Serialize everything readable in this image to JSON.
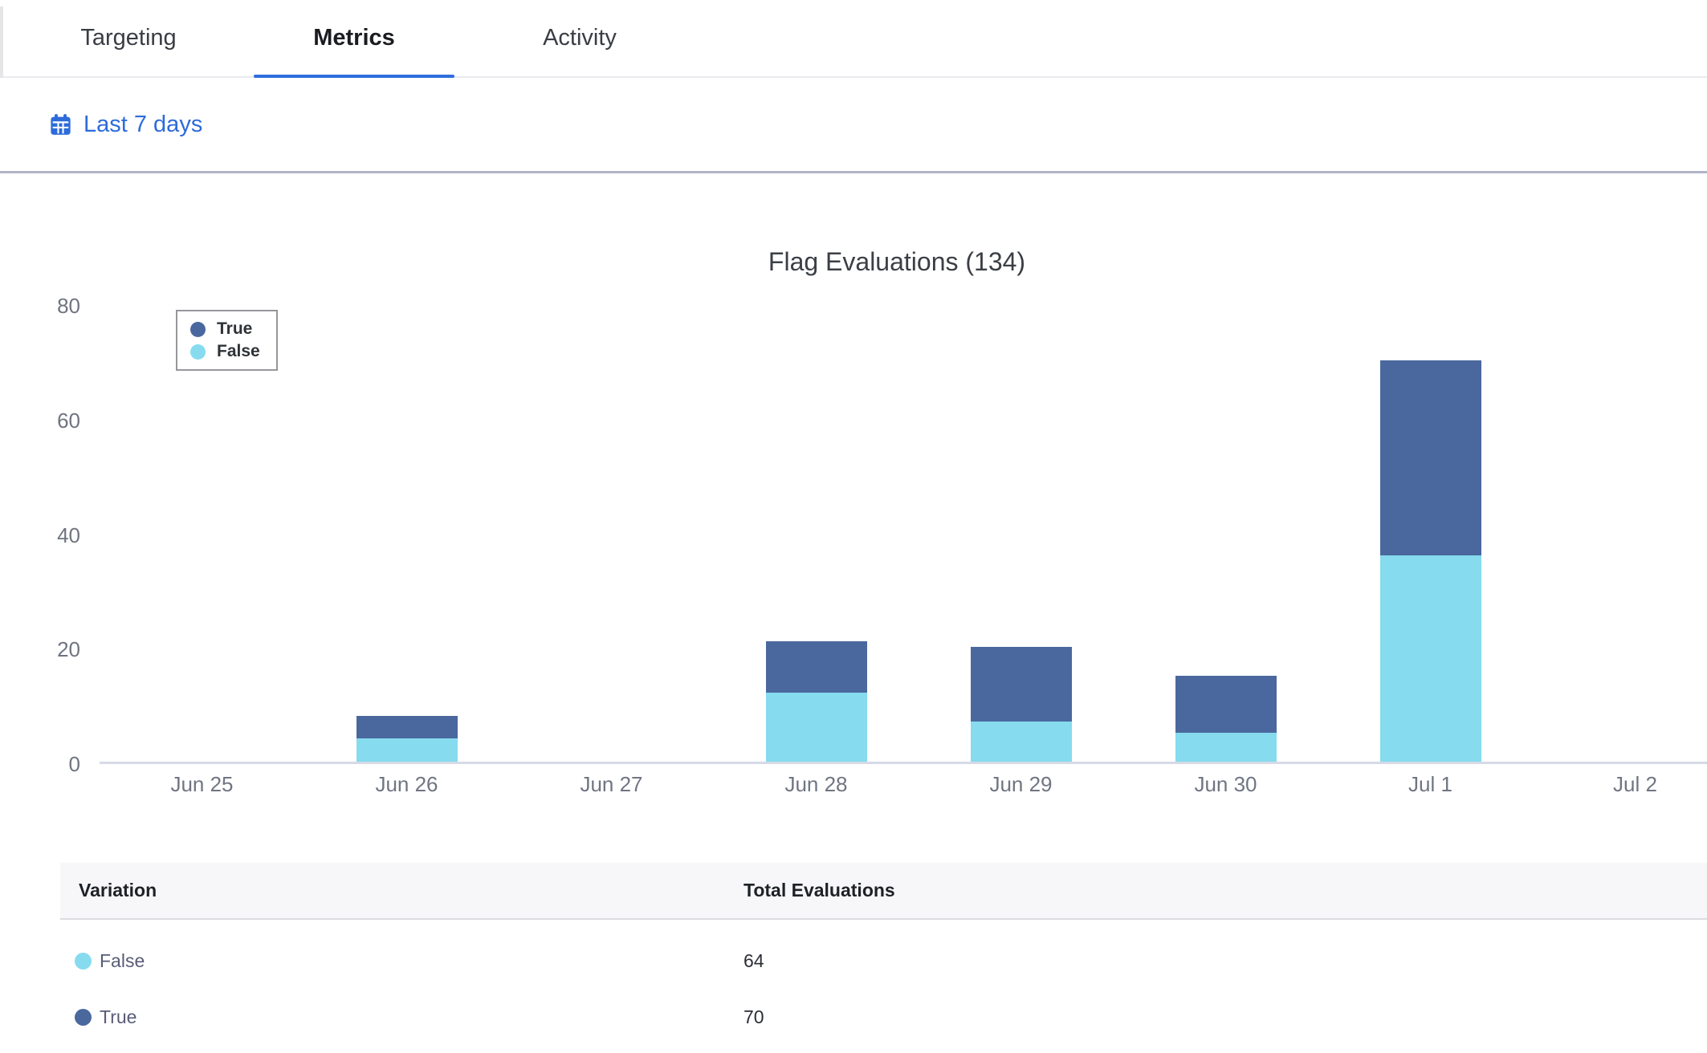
{
  "tabs": [
    {
      "label": "Targeting",
      "active": false
    },
    {
      "label": "Metrics",
      "active": true
    },
    {
      "label": "Activity",
      "active": false
    }
  ],
  "toolbar": {
    "calendar_icon": "calendar-icon",
    "date_range_label": "Last 7 days"
  },
  "chart_data": {
    "type": "bar",
    "stacked": true,
    "title": "Flag Evaluations (134)",
    "total_evaluations": 134,
    "categories": [
      "Jun 25",
      "Jun 26",
      "Jun 27",
      "Jun 28",
      "Jun 29",
      "Jun 30",
      "Jul 1",
      "Jul 2"
    ],
    "series": [
      {
        "name": "True",
        "color": "#4A689E",
        "values": [
          0,
          4,
          0,
          9,
          13,
          10,
          34,
          0
        ]
      },
      {
        "name": "False",
        "color": "#86DBEF",
        "values": [
          0,
          4,
          0,
          12,
          7,
          5,
          36,
          0
        ]
      }
    ],
    "ylim": [
      0,
      80
    ],
    "yticks": [
      0,
      20,
      40,
      60,
      80
    ],
    "grid": false,
    "legend_position": "top-left"
  },
  "table": {
    "columns": [
      "Variation",
      "Total Evaluations"
    ],
    "rows": [
      {
        "variation": "False",
        "color": "#86DBEF",
        "total": "64"
      },
      {
        "variation": "True",
        "color": "#4A689E",
        "total": "70"
      }
    ]
  },
  "colors": {
    "accent_blue": "#2D6BDB",
    "tab_underline": "#2F6EDC",
    "axis_line": "#D6DAE7",
    "section_divider": "#B1B4C7",
    "true_series": "#4A689E",
    "false_series": "#86DBEF"
  }
}
